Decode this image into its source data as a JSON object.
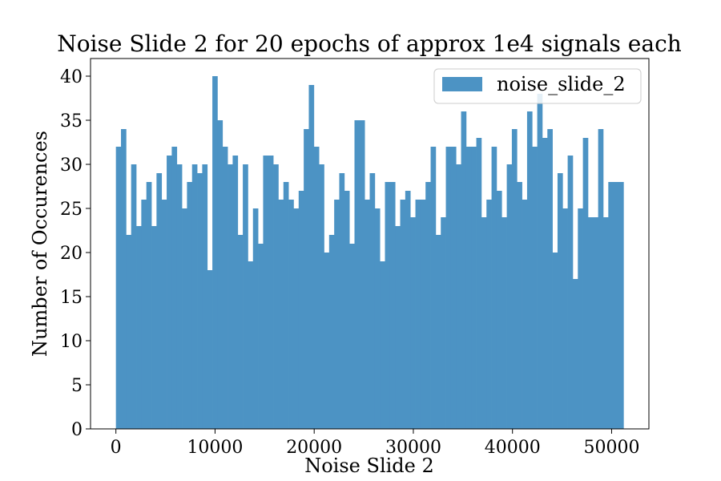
{
  "chart_data": {
    "type": "bar",
    "title": "Noise Slide 2 for 20 epochs of approx 1e4 signals each",
    "xlabel": "Noise Slide 2",
    "ylabel": "Number of Occurences",
    "xlim": [
      -2560,
      53760
    ],
    "ylim": [
      0,
      42
    ],
    "x_ticks": [
      0,
      10000,
      20000,
      30000,
      40000,
      50000
    ],
    "x_tick_labels": [
      "0",
      "10000",
      "20000",
      "30000",
      "40000",
      "50000"
    ],
    "y_ticks": [
      0,
      5,
      10,
      15,
      20,
      25,
      30,
      35,
      40
    ],
    "y_tick_labels": [
      "0",
      "5",
      "10",
      "15",
      "20",
      "25",
      "30",
      "35",
      "40"
    ],
    "bin_start": 0,
    "bin_width": 512,
    "series": [
      {
        "name": "noise_slide_2",
        "color": "#4c93c4",
        "values": [
          32,
          34,
          22,
          30,
          23,
          26,
          28,
          23,
          29,
          26,
          31,
          32,
          30,
          25,
          28,
          30,
          29,
          30,
          18,
          40,
          35,
          32,
          30,
          31,
          22,
          30,
          19,
          25,
          21,
          31,
          31,
          30,
          26,
          28,
          26,
          25,
          27,
          34,
          39,
          32,
          30,
          20,
          22,
          26,
          29,
          27,
          21,
          35,
          35,
          26,
          29,
          25,
          19,
          28,
          28,
          23,
          26,
          27,
          24,
          26,
          26,
          28,
          32,
          22,
          24,
          32,
          32,
          30,
          36,
          32,
          32,
          33,
          24,
          26,
          32,
          27,
          24,
          30,
          34,
          28,
          26,
          36,
          32,
          38,
          33,
          34,
          20,
          29,
          25,
          31,
          17,
          25,
          33,
          24,
          24,
          34,
          24,
          28,
          28,
          28
        ]
      }
    ],
    "legend": {
      "position": "top-right",
      "labels": [
        "noise_slide_2"
      ]
    },
    "grid": false
  }
}
